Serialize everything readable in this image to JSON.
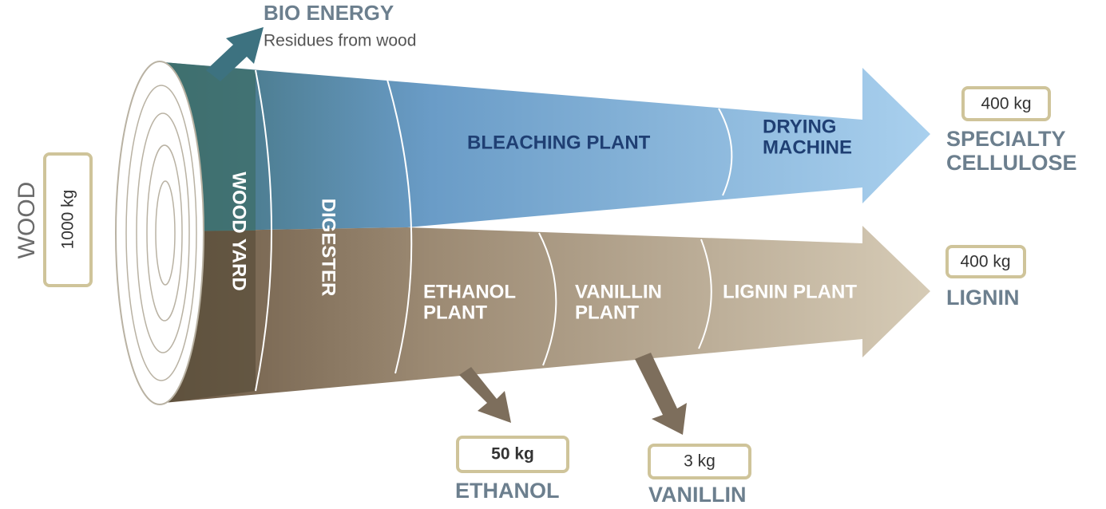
{
  "input": {
    "label": "WOOD",
    "amount": "1000 kg"
  },
  "byproduct": {
    "title": "BIO ENERGY",
    "subtitle": "Residues from wood"
  },
  "stages": {
    "wood_yard": "WOOD YARD",
    "digester": "DIGESTER",
    "bleaching_plant": "BLEACHING PLANT",
    "drying_machine": [
      "DRYING",
      "MACHINE"
    ],
    "ethanol_plant": [
      "ETHANOL",
      "PLANT"
    ],
    "vanillin_plant": [
      "VANILLIN",
      "PLANT"
    ],
    "lignin_plant": "LIGNIN PLANT"
  },
  "outputs": {
    "specialty_cellulose": {
      "lines": [
        "SPECIALTY",
        "CELLULOSE"
      ],
      "amount": "400 kg"
    },
    "lignin": {
      "lines": [
        "LIGNIN"
      ],
      "amount": "400 kg"
    },
    "ethanol": {
      "lines": [
        "ETHANOL"
      ],
      "amount": "50 kg"
    },
    "vanillin": {
      "lines": [
        "VANILLIN"
      ],
      "amount": "3 kg"
    }
  }
}
